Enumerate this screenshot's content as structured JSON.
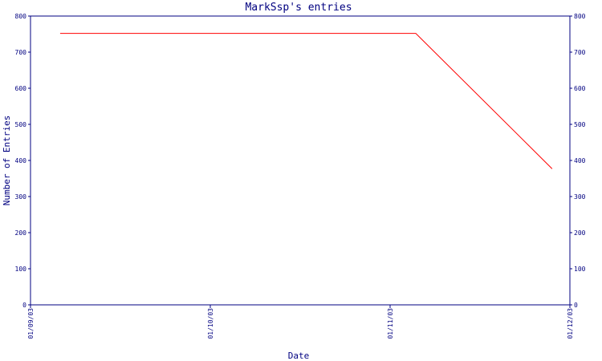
{
  "chart_data": {
    "type": "line",
    "title": "MarkSsp's entries",
    "xlabel": "Date",
    "ylabel": "Number of Entries",
    "x_ticks": [
      "01/09/03",
      "01/10/03",
      "01/11/03",
      "01/12/03"
    ],
    "y_ticks": [
      0,
      100,
      200,
      300,
      400,
      500,
      600,
      700,
      800
    ],
    "ylim": [
      0,
      800
    ],
    "xlim": [
      "2003-09-01",
      "2003-12-01"
    ],
    "grid": false,
    "legend": "none",
    "colors": {
      "axis": "#000080",
      "line": "#ff0000"
    },
    "series": [
      {
        "x": [
          "2003-09-06",
          "2003-11-05",
          "2003-11-28"
        ],
        "values": [
          752,
          752,
          377
        ]
      }
    ]
  }
}
